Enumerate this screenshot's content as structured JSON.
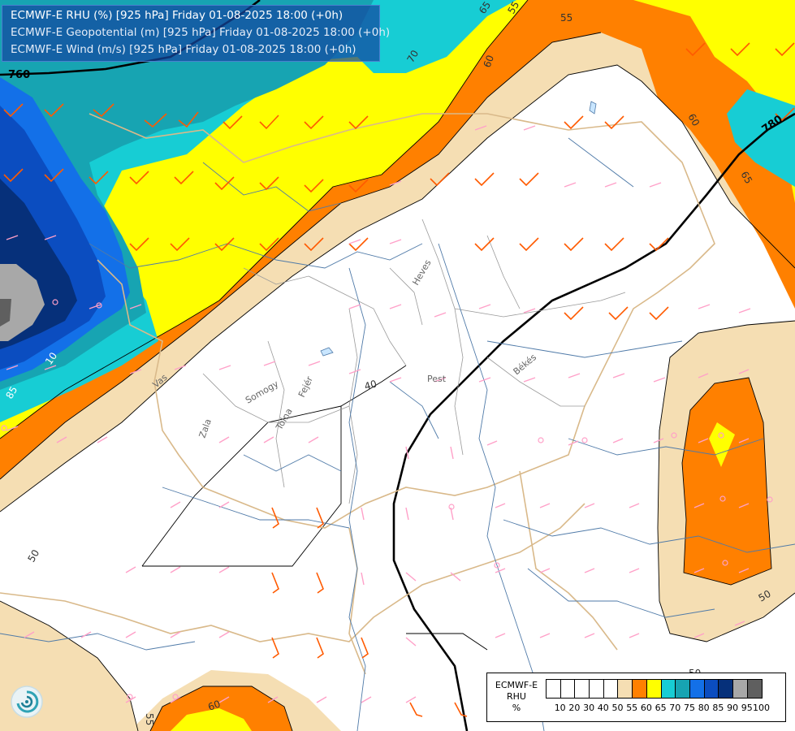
{
  "title": {
    "line1": "ECMWF-E RHU (%) [925 hPa] Friday 01-08-2025 18:00 (+0h)",
    "line2": "ECMWF-E Geopotential (m) [925 hPa] Friday 01-08-2025 18:00 (+0h)",
    "line3": "ECMWF-E Wind (m/s) [925 hPa] Friday 01-08-2025 18:00 (+0h)"
  },
  "legend": {
    "title_line1": "ECMWF-E",
    "title_line2": "RHU",
    "title_line3": "%",
    "swatch_colors": [
      "#ffffff",
      "#ffffff",
      "#ffffff",
      "#ffffff",
      "#ffffff",
      "#f5deb3",
      "#ff8000",
      "#ffff00",
      "#17cdd4",
      "#17a4b2",
      "#1370e8",
      "#0b4dc0",
      "#06307a",
      "#a8a8a8",
      "#5f5f5f"
    ],
    "ticks": [
      "10",
      "20",
      "30",
      "40",
      "50",
      "55",
      "60",
      "65",
      "70",
      "75",
      "80",
      "85",
      "90",
      "95",
      "100"
    ]
  },
  "contour_labels": {
    "geopotential": [
      "760",
      "780"
    ],
    "rhu": [
      "65",
      "55",
      "60",
      "60",
      "65",
      "70",
      "55",
      "60",
      "65",
      "50",
      "50",
      "40",
      "10",
      "85",
      "50",
      "55",
      "60"
    ]
  },
  "place_labels": [
    "Heves",
    "Pest",
    "Békés",
    "Fejér",
    "Somogy",
    "Tolna",
    "Zala",
    "Vas"
  ],
  "colors": {
    "rh_50": "#f5deb3",
    "rh_55": "#ff8000",
    "rh_60": "#ffff00",
    "rh_65": "#17cdd4",
    "rh_70": "#17a4b2",
    "rh_75": "#1370e8",
    "rh_80": "#0b4dc0",
    "rh_85": "#06307a",
    "rh_90": "#a8a8a8",
    "rh_95": "#5f5f5f",
    "wind_strong": "#ff5a00",
    "wind_weak": "#ffa0c8",
    "geopotential_line": "#000000"
  },
  "logo": "ecmwf-swirl-logo"
}
